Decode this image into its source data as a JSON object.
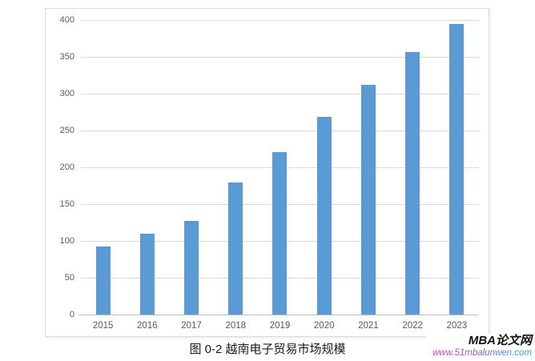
{
  "chart_data": {
    "type": "bar",
    "title": "图 0-2 越南电子贸易市场规模",
    "categories": [
      "2015",
      "2016",
      "2017",
      "2018",
      "2019",
      "2020",
      "2021",
      "2022",
      "2023"
    ],
    "values": [
      92,
      110,
      127,
      179,
      221,
      268,
      312,
      356,
      395
    ],
    "xlabel": "",
    "ylabel": "",
    "ylim": [
      0,
      400
    ],
    "yticks": [
      400,
      350,
      300,
      250,
      200,
      150,
      100,
      50,
      0
    ],
    "grid": "horizontal",
    "legend": "none",
    "bar_color": "#5B9BD5",
    "gridline_color": "#D9D9D9",
    "axis_line_color": "#BFBFBF",
    "tick_label_color": "#595959"
  },
  "caption": "图 0-2 越南电子贸易市场规模",
  "watermark": {
    "site_name": "MBA论文网",
    "site_url": "www.51mbalunwen.com",
    "url_gradient_start": "#e23ab8",
    "url_gradient_end": "#21b6e0"
  }
}
